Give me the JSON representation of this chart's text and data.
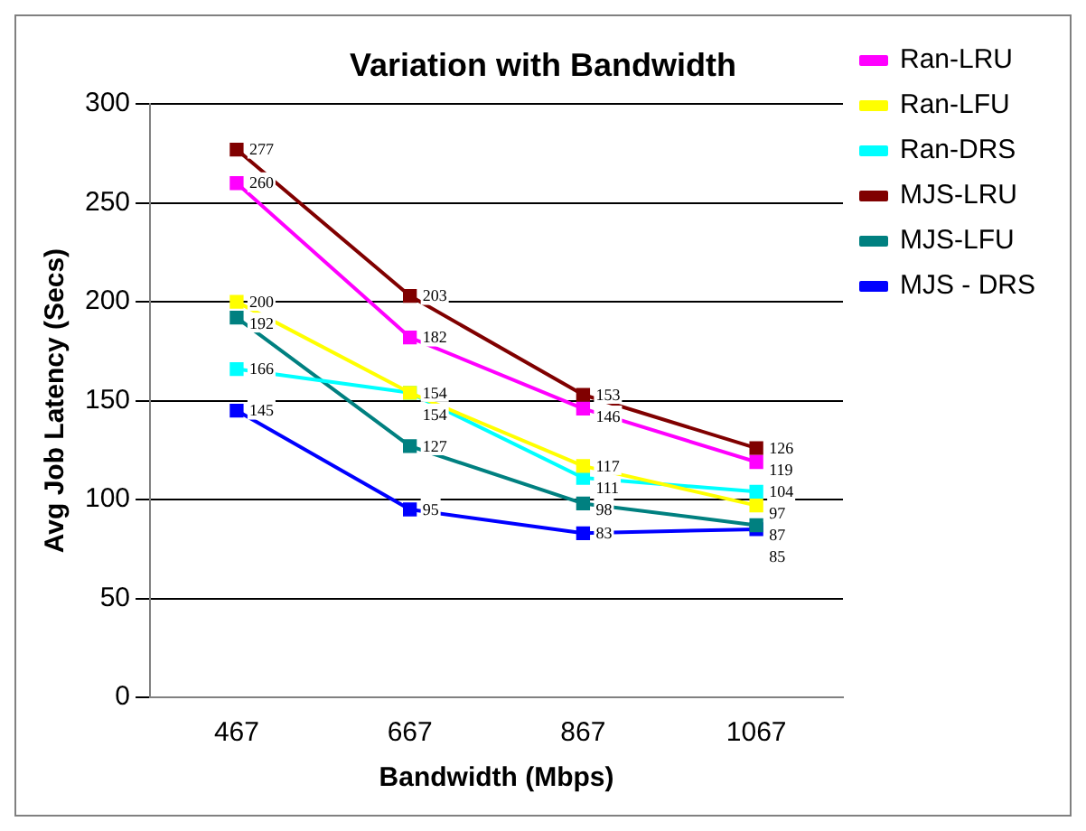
{
  "chart_data": {
    "type": "line",
    "title": "Variation with Bandwidth",
    "xlabel": "Bandwidth (Mbps)",
    "ylabel": "Avg Job Latency (Secs)",
    "categories": [
      "467",
      "667",
      "867",
      "1067"
    ],
    "series": [
      {
        "name": "Ran-LRU",
        "color": "#ff00ff",
        "values": [
          260,
          182,
          146,
          119
        ]
      },
      {
        "name": "Ran-LFU",
        "color": "#ffff00",
        "values": [
          200,
          154,
          117,
          97
        ]
      },
      {
        "name": "Ran-DRS",
        "color": "#00ffff",
        "values": [
          166,
          154,
          111,
          104
        ]
      },
      {
        "name": "MJS-LRU",
        "color": "#800000",
        "values": [
          277,
          203,
          153,
          126
        ]
      },
      {
        "name": "MJS-LFU",
        "color": "#008080",
        "values": [
          192,
          127,
          98,
          87
        ]
      },
      {
        "name": "MJS - DRS",
        "color": "#0000ff",
        "values": [
          145,
          95,
          83,
          85
        ]
      }
    ],
    "ylim": [
      0,
      300
    ],
    "yticks": [
      0,
      50,
      100,
      150,
      200,
      250,
      300
    ],
    "grid": "y",
    "legend": "top right",
    "marker": "square",
    "data_labels": true
  }
}
